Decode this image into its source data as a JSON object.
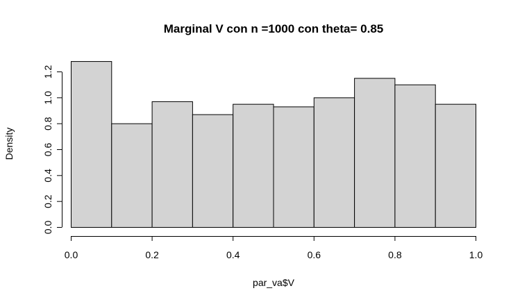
{
  "chart_data": {
    "type": "histogram",
    "title": "Marginal V con n =1000 con theta= 0.85",
    "xlabel": "par_va$V",
    "ylabel": "Density",
    "bins": [
      {
        "x0": 0.0,
        "x1": 0.1,
        "density": 1.28
      },
      {
        "x0": 0.1,
        "x1": 0.2,
        "density": 0.8
      },
      {
        "x0": 0.2,
        "x1": 0.3,
        "density": 0.97
      },
      {
        "x0": 0.3,
        "x1": 0.4,
        "density": 0.87
      },
      {
        "x0": 0.4,
        "x1": 0.5,
        "density": 0.95
      },
      {
        "x0": 0.5,
        "x1": 0.6,
        "density": 0.93
      },
      {
        "x0": 0.6,
        "x1": 0.7,
        "density": 1.0
      },
      {
        "x0": 0.7,
        "x1": 0.8,
        "density": 1.15
      },
      {
        "x0": 0.8,
        "x1": 0.9,
        "density": 1.1
      },
      {
        "x0": 0.9,
        "x1": 1.0,
        "density": 0.95
      }
    ],
    "xlim": [
      0.0,
      1.0
    ],
    "ylim": [
      0.0,
      1.2
    ],
    "xticks": [
      "0.0",
      "0.2",
      "0.4",
      "0.6",
      "0.8",
      "1.0"
    ],
    "yticks": [
      "0.0",
      "0.2",
      "0.4",
      "0.6",
      "0.8",
      "1.0",
      "1.2"
    ],
    "bar_color": "#d3d3d3",
    "grid": false
  }
}
